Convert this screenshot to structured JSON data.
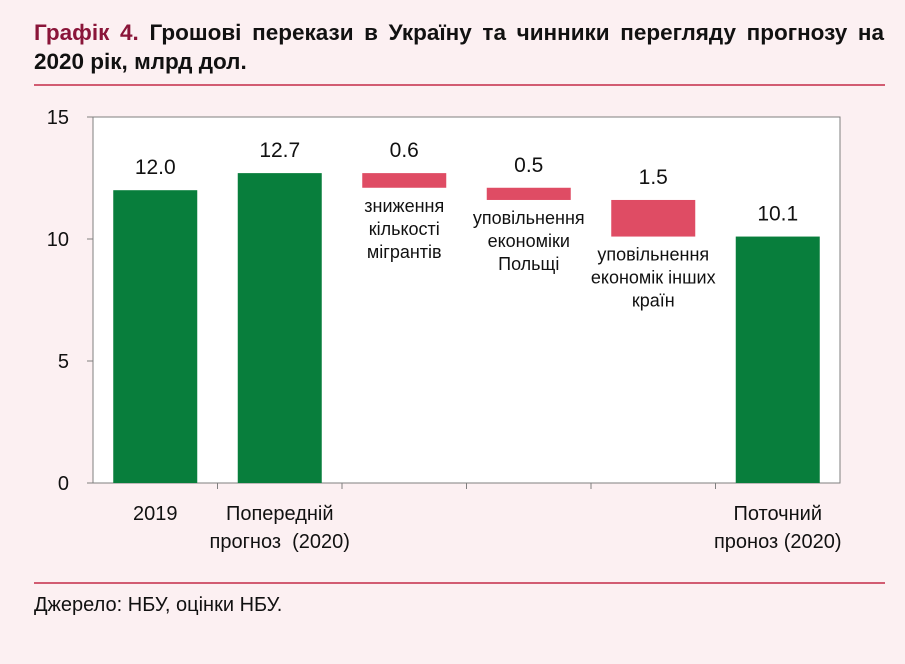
{
  "title": {
    "prefix": "Графік 4.",
    "text": "Грошові перекази в Україну та чинники перегляду прогнозу на 2020 рік, млрд дол."
  },
  "source": "Джерело: НБУ, оцінки НБУ.",
  "colors": {
    "positive": "#087e3c",
    "negative": "#df4c64",
    "rule": "#d25c72",
    "background": "#fcf0f2"
  },
  "chart_data": {
    "type": "bar",
    "subtype": "waterfall",
    "ylim": [
      0,
      15
    ],
    "yticks": [
      0,
      5,
      10,
      15
    ],
    "grid": false,
    "bars": [
      {
        "kind": "total",
        "base": 0,
        "value": 12.0,
        "label": "12.0",
        "category": [
          "2019"
        ]
      },
      {
        "kind": "total",
        "base": 0,
        "value": 12.7,
        "label": "12.7",
        "category": [
          "Попередній",
          "прогноз  (2020)"
        ]
      },
      {
        "kind": "decrease",
        "base": 12.1,
        "value": 0.6,
        "label": "0.6",
        "annotation": [
          "зниження",
          "кількості",
          "мігрантів"
        ]
      },
      {
        "kind": "decrease",
        "base": 11.6,
        "value": 0.5,
        "label": "0.5",
        "annotation": [
          "уповільнення",
          "економіки",
          "Польщі"
        ]
      },
      {
        "kind": "decrease",
        "base": 10.1,
        "value": 1.5,
        "label": "1.5",
        "annotation": [
          "уповільнення",
          "економік інших",
          "країн"
        ]
      },
      {
        "kind": "total",
        "base": 0,
        "value": 10.1,
        "label": "10.1",
        "category": [
          "Поточний",
          "проноз (2020)"
        ]
      }
    ]
  }
}
